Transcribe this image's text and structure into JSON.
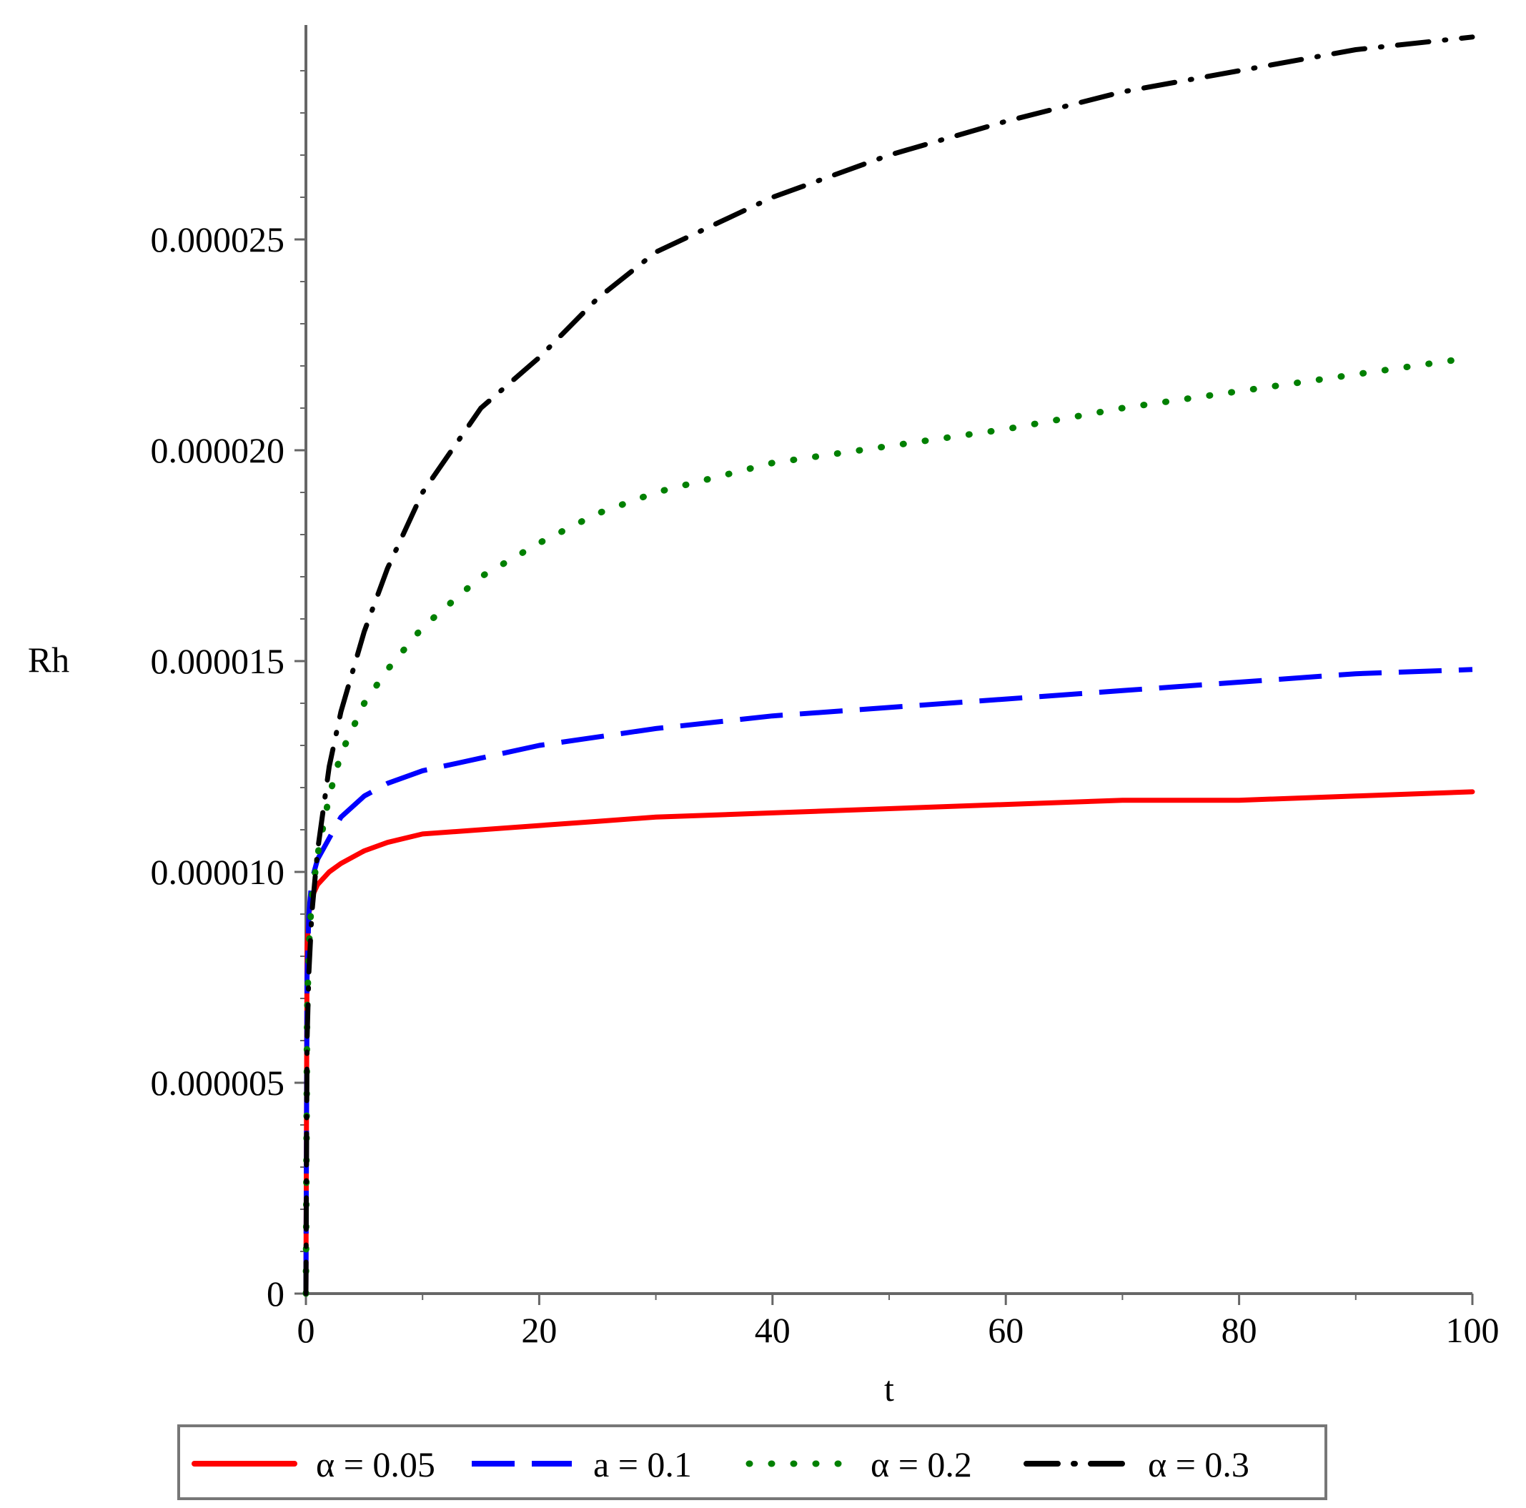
{
  "chart_data": {
    "type": "line",
    "title": "",
    "xlabel": "t",
    "ylabel": "Rh",
    "xlim": [
      0,
      100
    ],
    "ylim": [
      0,
      3e-05
    ],
    "x_ticks": [
      0,
      20,
      40,
      60,
      80,
      100
    ],
    "x_tick_labels": [
      "0",
      "20",
      "40",
      "60",
      "80",
      "100"
    ],
    "y_ticks": [
      0,
      5e-06,
      1e-05,
      1.5e-05,
      2e-05,
      2.5e-05
    ],
    "y_tick_labels": [
      "0",
      "0.000005",
      "0.000010",
      "0.000015",
      "0.000020",
      "0.000025"
    ],
    "grid": false,
    "legend_position": "bottom",
    "x": [
      0,
      0.1,
      0.25,
      0.5,
      1,
      2,
      3,
      5,
      7,
      10,
      15,
      20,
      25,
      30,
      40,
      50,
      60,
      70,
      80,
      90,
      100
    ],
    "series": [
      {
        "name": "α = 0.05",
        "color": "#ff0000",
        "dash": "solid",
        "values": [
          0,
          8.2e-06,
          9e-06,
          9.4e-06,
          9.7e-06,
          1e-05,
          1.02e-05,
          1.05e-05,
          1.07e-05,
          1.09e-05,
          1.1e-05,
          1.11e-05,
          1.12e-05,
          1.13e-05,
          1.14e-05,
          1.15e-05,
          1.16e-05,
          1.17e-05,
          1.17e-05,
          1.18e-05,
          1.19e-05
        ]
      },
      {
        "name": "a = 0.1",
        "color": "#0000ff",
        "dash": "dash",
        "values": [
          0,
          7.5e-06,
          9e-06,
          9.8e-06,
          1.03e-05,
          1.08e-05,
          1.13e-05,
          1.18e-05,
          1.21e-05,
          1.24e-05,
          1.27e-05,
          1.3e-05,
          1.32e-05,
          1.34e-05,
          1.37e-05,
          1.39e-05,
          1.41e-05,
          1.43e-05,
          1.45e-05,
          1.47e-05,
          1.48e-05
        ]
      },
      {
        "name": "α = 0.2",
        "color": "#008000",
        "dash": "dot",
        "values": [
          0,
          6.6e-06,
          8.2e-06,
          9.4e-06,
          1.04e-05,
          1.18e-05,
          1.28e-05,
          1.4e-05,
          1.48e-05,
          1.58e-05,
          1.7e-05,
          1.78e-05,
          1.85e-05,
          1.9e-05,
          1.97e-05,
          2.01e-05,
          2.05e-05,
          2.1e-05,
          2.14e-05,
          2.18e-05,
          2.22e-05
        ]
      },
      {
        "name": "α = 0.3",
        "color": "#000000",
        "dash": "dashdot",
        "values": [
          0,
          6e-06,
          7.6e-06,
          9e-06,
          1.05e-05,
          1.25e-05,
          1.38e-05,
          1.57e-05,
          1.72e-05,
          1.9e-05,
          2.1e-05,
          2.22e-05,
          2.36e-05,
          2.47e-05,
          2.6e-05,
          2.7e-05,
          2.78e-05,
          2.85e-05,
          2.9e-05,
          2.95e-05,
          2.98e-05
        ]
      }
    ]
  }
}
